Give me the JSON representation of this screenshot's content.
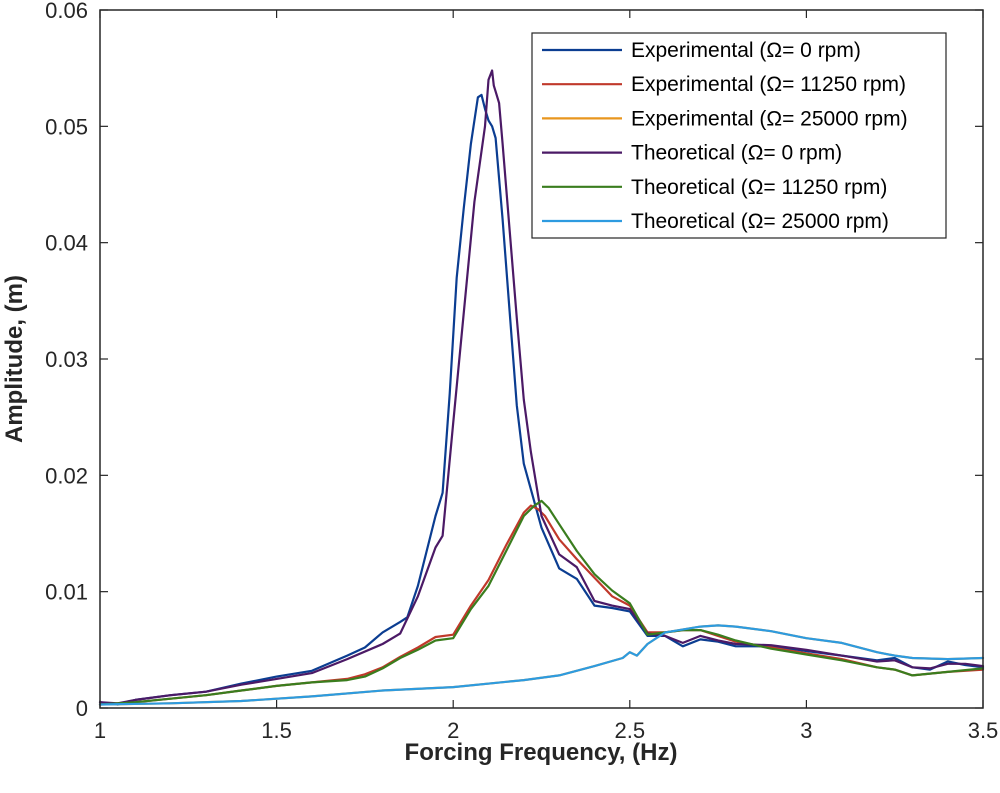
{
  "chart_data": {
    "type": "line",
    "title": "",
    "xlabel": "Forcing Frequency, (Hz)",
    "ylabel": "Amplitude, (m)",
    "xlim": [
      1,
      3.5
    ],
    "ylim": [
      0,
      0.06
    ],
    "xticks": [
      1,
      1.5,
      2,
      2.5,
      3,
      3.5
    ],
    "xtick_labels": [
      "1",
      "1.5",
      "2",
      "2.5",
      "3",
      "3.5"
    ],
    "yticks": [
      0,
      0.01,
      0.02,
      0.03,
      0.04,
      0.05,
      0.06
    ],
    "ytick_labels": [
      "0",
      "0.01",
      "0.02",
      "0.03",
      "0.04",
      "0.05",
      "0.06"
    ],
    "grid": false,
    "legend_position": "top-right",
    "series": [
      {
        "name": "Experimental (Ω= 0 rpm)",
        "color": "#0b3d91",
        "x": [
          1.0,
          1.05,
          1.1,
          1.2,
          1.3,
          1.4,
          1.5,
          1.6,
          1.7,
          1.75,
          1.8,
          1.85,
          1.87,
          1.9,
          1.95,
          1.97,
          1.99,
          2.01,
          2.03,
          2.05,
          2.07,
          2.08,
          2.09,
          2.1,
          2.11,
          2.12,
          2.14,
          2.16,
          2.18,
          2.2,
          2.25,
          2.3,
          2.35,
          2.4,
          2.45,
          2.5,
          2.55,
          2.6,
          2.65,
          2.7,
          2.75,
          2.8,
          2.9,
          3.0,
          3.1,
          3.2,
          3.25,
          3.3,
          3.35,
          3.4,
          3.45,
          3.5
        ],
        "values": [
          0.0005,
          0.0003,
          0.0007,
          0.0011,
          0.0014,
          0.0021,
          0.0027,
          0.0032,
          0.0045,
          0.0052,
          0.0065,
          0.0074,
          0.0078,
          0.0105,
          0.0165,
          0.0185,
          0.027,
          0.037,
          0.043,
          0.0485,
          0.0525,
          0.0527,
          0.0515,
          0.0505,
          0.05,
          0.049,
          0.042,
          0.034,
          0.026,
          0.021,
          0.0155,
          0.012,
          0.0111,
          0.0088,
          0.0086,
          0.0083,
          0.0062,
          0.0062,
          0.0053,
          0.0059,
          0.0057,
          0.0053,
          0.0053,
          0.0049,
          0.0045,
          0.0041,
          0.0043,
          0.0035,
          0.0033,
          0.004,
          0.0037,
          0.0035
        ]
      },
      {
        "name": "Experimental (Ω= 11250 rpm)",
        "color": "#c0392b",
        "x": [
          1.0,
          1.1,
          1.2,
          1.3,
          1.4,
          1.5,
          1.6,
          1.7,
          1.75,
          1.8,
          1.85,
          1.9,
          1.95,
          2.0,
          2.05,
          2.1,
          2.15,
          2.2,
          2.22,
          2.24,
          2.26,
          2.28,
          2.3,
          2.35,
          2.4,
          2.45,
          2.5,
          2.55,
          2.6,
          2.65,
          2.7,
          2.75,
          2.8,
          2.9,
          3.0,
          3.1,
          3.2,
          3.25,
          3.3,
          3.4,
          3.5
        ],
        "values": [
          0.0003,
          0.0005,
          0.0008,
          0.0011,
          0.0015,
          0.0019,
          0.0022,
          0.0025,
          0.0029,
          0.0035,
          0.0044,
          0.0052,
          0.0061,
          0.0063,
          0.0088,
          0.011,
          0.014,
          0.0168,
          0.0174,
          0.0171,
          0.0165,
          0.0155,
          0.0145,
          0.0128,
          0.0112,
          0.0096,
          0.0088,
          0.0065,
          0.0065,
          0.0067,
          0.0067,
          0.0062,
          0.0057,
          0.0052,
          0.0047,
          0.0042,
          0.0035,
          0.0033,
          0.0028,
          0.0031,
          0.0033
        ]
      },
      {
        "name": "Experimental (Ω= 25000 rpm)",
        "color": "#e8961e",
        "x": [
          1.0,
          1.2,
          1.4,
          1.6,
          1.8,
          2.0,
          2.2,
          2.3,
          2.4,
          2.48,
          2.5,
          2.52,
          2.55,
          2.6,
          2.7,
          2.75,
          2.8,
          2.9,
          3.0,
          3.1,
          3.2,
          3.25,
          3.3,
          3.4,
          3.5
        ],
        "values": [
          0.0003,
          0.0004,
          0.0006,
          0.001,
          0.0015,
          0.0018,
          0.0024,
          0.0028,
          0.0036,
          0.0043,
          0.0048,
          0.0045,
          0.0055,
          0.0065,
          0.007,
          0.0071,
          0.007,
          0.0066,
          0.006,
          0.0056,
          0.0048,
          0.0045,
          0.0043,
          0.0042,
          0.0043
        ]
      },
      {
        "name": "Theoretical (Ω= 0 rpm)",
        "color": "#4b1a66",
        "x": [
          1.0,
          1.05,
          1.1,
          1.2,
          1.3,
          1.4,
          1.5,
          1.6,
          1.7,
          1.8,
          1.85,
          1.9,
          1.95,
          1.97,
          2.0,
          2.03,
          2.06,
          2.09,
          2.1,
          2.11,
          2.115,
          2.12,
          2.13,
          2.14,
          2.16,
          2.18,
          2.2,
          2.22,
          2.25,
          2.3,
          2.35,
          2.4,
          2.45,
          2.5,
          2.55,
          2.6,
          2.65,
          2.7,
          2.75,
          2.8,
          2.9,
          3.0,
          3.1,
          3.2,
          3.25,
          3.3,
          3.35,
          3.4,
          3.45,
          3.5
        ],
        "values": [
          0.0005,
          0.0004,
          0.0007,
          0.0011,
          0.0014,
          0.002,
          0.0025,
          0.003,
          0.0042,
          0.0055,
          0.0064,
          0.0096,
          0.0138,
          0.0148,
          0.0245,
          0.034,
          0.0435,
          0.05,
          0.054,
          0.0548,
          0.0535,
          0.053,
          0.052,
          0.0485,
          0.041,
          0.0335,
          0.0265,
          0.022,
          0.0165,
          0.0132,
          0.0121,
          0.0092,
          0.0088,
          0.0085,
          0.0064,
          0.0062,
          0.0056,
          0.0062,
          0.0058,
          0.0055,
          0.0054,
          0.005,
          0.0045,
          0.004,
          0.0041,
          0.0035,
          0.0034,
          0.0038,
          0.0038,
          0.0036
        ]
      },
      {
        "name": "Theoretical (Ω= 11250 rpm)",
        "color": "#3a7d1e",
        "x": [
          1.0,
          1.1,
          1.2,
          1.3,
          1.4,
          1.5,
          1.6,
          1.7,
          1.75,
          1.8,
          1.85,
          1.9,
          1.95,
          2.0,
          2.05,
          2.1,
          2.15,
          2.2,
          2.23,
          2.25,
          2.27,
          2.3,
          2.35,
          2.4,
          2.45,
          2.5,
          2.55,
          2.6,
          2.65,
          2.7,
          2.75,
          2.8,
          2.9,
          3.0,
          3.1,
          3.2,
          3.25,
          3.3,
          3.4,
          3.5
        ],
        "values": [
          0.0003,
          0.0005,
          0.0008,
          0.0011,
          0.0015,
          0.0019,
          0.0022,
          0.0024,
          0.0027,
          0.0034,
          0.0043,
          0.005,
          0.0058,
          0.006,
          0.0085,
          0.0105,
          0.0135,
          0.0165,
          0.0174,
          0.0178,
          0.0172,
          0.0158,
          0.0135,
          0.0115,
          0.0101,
          0.009,
          0.0063,
          0.0065,
          0.0067,
          0.0067,
          0.0063,
          0.0058,
          0.0051,
          0.0046,
          0.0041,
          0.0035,
          0.0033,
          0.0028,
          0.0031,
          0.0034
        ]
      },
      {
        "name": "Theoretical (Ω= 25000 rpm)",
        "color": "#2d9be0",
        "x": [
          1.0,
          1.2,
          1.4,
          1.6,
          1.8,
          2.0,
          2.2,
          2.3,
          2.4,
          2.48,
          2.5,
          2.52,
          2.55,
          2.6,
          2.7,
          2.75,
          2.8,
          2.9,
          3.0,
          3.1,
          3.2,
          3.25,
          3.3,
          3.4,
          3.5
        ],
        "values": [
          0.0003,
          0.0004,
          0.0006,
          0.001,
          0.0015,
          0.0018,
          0.0024,
          0.0028,
          0.0036,
          0.0043,
          0.0048,
          0.0045,
          0.0055,
          0.0065,
          0.007,
          0.0071,
          0.007,
          0.0066,
          0.006,
          0.0056,
          0.0048,
          0.0045,
          0.0043,
          0.0042,
          0.0043
        ]
      }
    ]
  }
}
